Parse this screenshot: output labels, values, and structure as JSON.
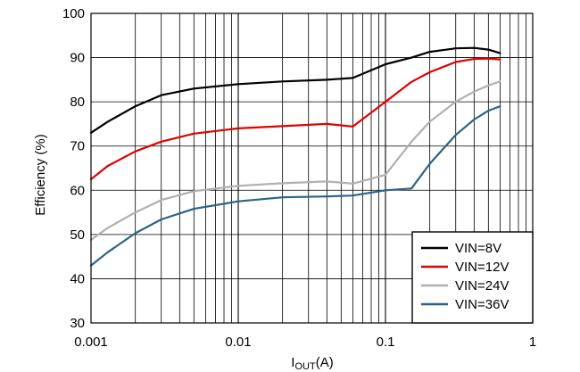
{
  "chart_data": {
    "type": "line",
    "xscale": "log",
    "xlim": [
      0.001,
      1
    ],
    "ylim": [
      30,
      100
    ],
    "x_ticks": [
      "0.001",
      "0.01",
      "0.1",
      "1"
    ],
    "y_ticks": [
      "30",
      "40",
      "50",
      "60",
      "70",
      "80",
      "90",
      "100"
    ],
    "xlabel_main": "I",
    "xlabel_sub": "OUT",
    "xlabel_unit": "(A)",
    "ylabel": "Efficiency (%)",
    "grid": true,
    "legend_position": "bottom-right",
    "series": [
      {
        "name": "VIN=8V",
        "color": "#000000",
        "x": [
          0.001,
          0.0013,
          0.002,
          0.003,
          0.005,
          0.01,
          0.02,
          0.04,
          0.06,
          0.1,
          0.15,
          0.2,
          0.3,
          0.4,
          0.5,
          0.6
        ],
        "y": [
          73,
          75.5,
          79,
          81.5,
          83,
          84,
          84.6,
          85,
          85.4,
          88.5,
          90,
          91.3,
          92.1,
          92.2,
          91.8,
          91
        ]
      },
      {
        "name": "VIN=12V",
        "color": "#e00000",
        "x": [
          0.001,
          0.0013,
          0.002,
          0.003,
          0.005,
          0.01,
          0.02,
          0.04,
          0.06,
          0.1,
          0.15,
          0.2,
          0.3,
          0.4,
          0.5,
          0.6
        ],
        "y": [
          62.5,
          65.5,
          68.8,
          71,
          72.8,
          74,
          74.5,
          75,
          74.4,
          80,
          84.5,
          86.7,
          89,
          89.7,
          89.8,
          89.6
        ]
      },
      {
        "name": "VIN=24V",
        "color": "#b0b0b0",
        "x": [
          0.001,
          0.0013,
          0.002,
          0.003,
          0.005,
          0.01,
          0.02,
          0.04,
          0.06,
          0.1,
          0.15,
          0.2,
          0.3,
          0.4,
          0.5,
          0.6
        ],
        "y": [
          48.8,
          51.5,
          55,
          57.8,
          59.8,
          61,
          61.6,
          62,
          61.5,
          63.5,
          71,
          75.5,
          80,
          82.3,
          83.7,
          84.6
        ]
      },
      {
        "name": "VIN=36V",
        "color": "#2c6384",
        "x": [
          0.001,
          0.0013,
          0.002,
          0.003,
          0.005,
          0.01,
          0.02,
          0.04,
          0.06,
          0.1,
          0.15,
          0.2,
          0.3,
          0.4,
          0.5,
          0.6
        ],
        "y": [
          43,
          46,
          50.3,
          53.4,
          55.8,
          57.5,
          58.4,
          58.6,
          58.8,
          60,
          60.4,
          66,
          72.5,
          76,
          78,
          79
        ]
      }
    ]
  }
}
